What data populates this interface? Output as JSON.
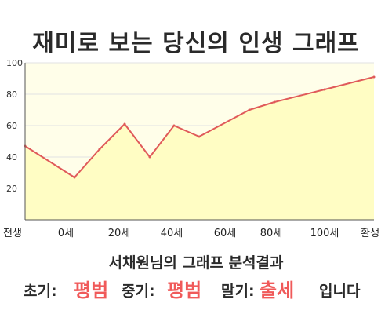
{
  "title": "재미로 보는 당신의 인생 그래프",
  "subtitle": "서채원님의 그래프 분석결과",
  "results": {
    "early_label": "초기:",
    "early_value": "평범",
    "middle_label": "중기:",
    "middle_value": "평범",
    "late_label": "말기:",
    "late_value": "출세",
    "ending": "입니다"
  },
  "colors": {
    "line": "#e05a5a",
    "fill": "#fffdc4",
    "plot_background": "#fffee9",
    "grid": "#e2e2e2",
    "highlight": "#f05a5a"
  },
  "chart_data": {
    "type": "area",
    "x_tick_labels": [
      "전생",
      "0세",
      "20세",
      "40세",
      "60세",
      "80세",
      "100세",
      "환생"
    ],
    "y_ticks": [
      20,
      40,
      60,
      80,
      100
    ],
    "ylim": [
      0,
      100
    ],
    "grid": true,
    "x": [
      "전생",
      "0세",
      "10세",
      "20세",
      "30세",
      "40세",
      "50세",
      "70세",
      "80세",
      "100세",
      "환생"
    ],
    "values": [
      47,
      27,
      45,
      61,
      40,
      60,
      53,
      70,
      75,
      83,
      91
    ]
  }
}
